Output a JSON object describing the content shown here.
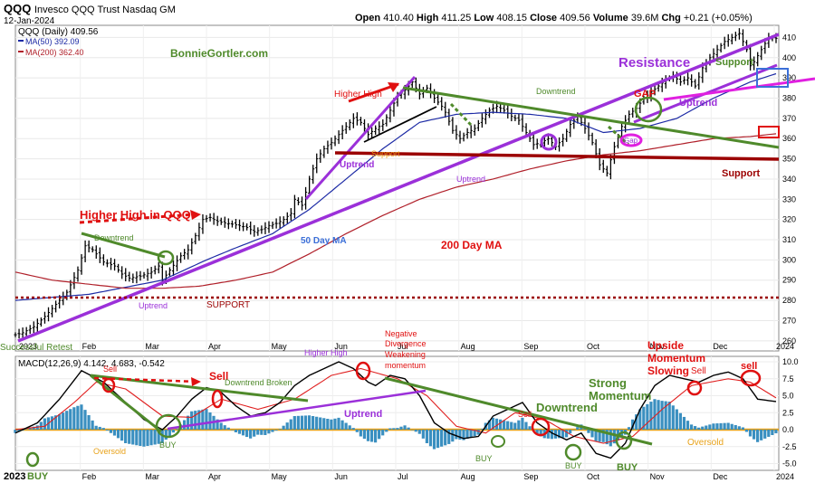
{
  "header": {
    "symbol": "QQQ",
    "name": "Invesco QQQ Trust Nasdaq GM",
    "date": "12-Jan-2024",
    "open_label": "Open",
    "open": "410.40",
    "high_label": "High",
    "high": "411.25",
    "low_label": "Low",
    "low": "408.15",
    "close_label": "Close",
    "close": "409.56",
    "volume_label": "Volume",
    "volume": "39.6M",
    "chg_label": "Chg",
    "chg": "+0.21 (+0.05%)"
  },
  "legend": {
    "price": "QQQ (Daily) 409.56",
    "ma50": "MA(50) 392.09",
    "ma200": "MA(200) 362.40",
    "macd": "MACD(12,26,9) 4.142, 4.683, -0.542"
  },
  "colors": {
    "price": "#000000",
    "ma50": "#1c2aa5",
    "ma200": "#b0202a",
    "purple": "#9b30d9",
    "green": "#4f8a2b",
    "red": "#e01010",
    "darkred": "#9b0000",
    "magenta": "#e020e0",
    "orange": "#e8a21a",
    "blue": "#3b6fd8",
    "hist": "#3a8fc0"
  },
  "chart_data": [
    {
      "type": "line",
      "title": "QQQ (Daily) 409.56",
      "ylim": [
        255,
        416
      ],
      "yticks": [
        260,
        270,
        280,
        290,
        300,
        310,
        320,
        330,
        340,
        350,
        360,
        370,
        380,
        390,
        400,
        410
      ],
      "xticks": [
        "2023",
        "Feb",
        "Mar",
        "Apr",
        "May",
        "Jun",
        "Jul",
        "Aug",
        "Sep",
        "Oct",
        "Nov",
        "Dec",
        "2024"
      ],
      "anchors": {
        "price": [
          [
            0,
            263
          ],
          [
            2,
            264
          ],
          [
            5,
            267
          ],
          [
            8,
            272
          ],
          [
            11,
            278
          ],
          [
            14,
            284
          ],
          [
            17,
            295
          ],
          [
            19,
            307
          ],
          [
            21,
            305
          ],
          [
            24,
            299
          ],
          [
            27,
            297
          ],
          [
            29,
            293
          ],
          [
            31,
            291
          ],
          [
            34,
            292
          ],
          [
            37,
            294
          ],
          [
            39,
            297
          ],
          [
            40,
            290
          ],
          [
            42,
            295
          ],
          [
            45,
            302
          ],
          [
            47,
            305
          ],
          [
            49,
            312
          ],
          [
            51,
            320
          ],
          [
            53,
            321
          ],
          [
            55,
            319
          ],
          [
            58,
            318
          ],
          [
            61,
            317
          ],
          [
            63,
            316
          ],
          [
            65,
            314
          ],
          [
            67,
            315
          ],
          [
            69,
            317
          ],
          [
            71,
            318
          ],
          [
            73,
            320
          ],
          [
            75,
            323
          ],
          [
            76,
            330
          ],
          [
            78,
            327
          ],
          [
            80,
            340
          ],
          [
            82,
            350
          ],
          [
            84,
            355
          ],
          [
            86,
            358
          ],
          [
            88,
            362
          ],
          [
            90,
            366
          ],
          [
            92,
            370
          ],
          [
            94,
            368
          ],
          [
            96,
            362
          ],
          [
            98,
            365
          ],
          [
            100,
            367
          ],
          [
            102,
            374
          ],
          [
            104,
            381
          ],
          [
            106,
            384
          ],
          [
            108,
            388
          ],
          [
            110,
            382
          ],
          [
            112,
            385
          ],
          [
            114,
            380
          ],
          [
            116,
            376
          ],
          [
            117,
            373
          ],
          [
            119,
            364
          ],
          [
            121,
            360
          ],
          [
            123,
            363
          ],
          [
            125,
            365
          ],
          [
            127,
            370
          ],
          [
            129,
            374
          ],
          [
            131,
            376
          ],
          [
            133,
            374
          ],
          [
            135,
            371
          ],
          [
            137,
            369
          ],
          [
            139,
            363
          ],
          [
            141,
            357
          ],
          [
            143,
            358
          ],
          [
            145,
            360
          ],
          [
            147,
            356
          ],
          [
            149,
            360
          ],
          [
            151,
            367
          ],
          [
            153,
            371
          ],
          [
            155,
            365
          ],
          [
            157,
            358
          ],
          [
            159,
            347
          ],
          [
            161,
            343
          ],
          [
            163,
            356
          ],
          [
            165,
            366
          ],
          [
            167,
            372
          ],
          [
            169,
            375
          ],
          [
            171,
            380
          ],
          [
            173,
            383
          ],
          [
            175,
            386
          ],
          [
            177,
            389
          ],
          [
            179,
            391
          ],
          [
            181,
            388
          ],
          [
            183,
            390
          ],
          [
            185,
            386
          ],
          [
            187,
            395
          ],
          [
            189,
            400
          ],
          [
            191,
            404
          ],
          [
            193,
            408
          ],
          [
            195,
            410
          ],
          [
            197,
            412
          ],
          [
            199,
            404
          ],
          [
            200,
            396
          ],
          [
            201,
            398
          ],
          [
            203,
            404
          ],
          [
            205,
            410
          ],
          [
            207,
            409.56
          ]
        ],
        "ma50": [
          [
            0,
            280
          ],
          [
            20,
            283
          ],
          [
            40,
            290
          ],
          [
            52,
            300
          ],
          [
            60,
            306
          ],
          [
            70,
            313
          ],
          [
            80,
            325
          ],
          [
            90,
            340
          ],
          [
            100,
            355
          ],
          [
            110,
            368
          ],
          [
            120,
            372
          ],
          [
            130,
            373
          ],
          [
            140,
            372
          ],
          [
            150,
            370
          ],
          [
            160,
            363
          ],
          [
            170,
            365
          ],
          [
            180,
            370
          ],
          [
            190,
            380
          ],
          [
            200,
            388
          ],
          [
            207,
            392.09
          ]
        ],
        "ma200": [
          [
            0,
            294
          ],
          [
            10,
            290
          ],
          [
            20,
            288
          ],
          [
            30,
            286
          ],
          [
            40,
            286
          ],
          [
            50,
            287
          ],
          [
            60,
            290
          ],
          [
            70,
            294
          ],
          [
            80,
            303
          ],
          [
            90,
            313
          ],
          [
            100,
            322
          ],
          [
            110,
            330
          ],
          [
            120,
            336
          ],
          [
            130,
            340
          ],
          [
            140,
            345
          ],
          [
            150,
            349
          ],
          [
            160,
            352
          ],
          [
            170,
            354
          ],
          [
            180,
            357
          ],
          [
            190,
            360
          ],
          [
            200,
            361
          ],
          [
            207,
            362.4
          ]
        ]
      },
      "annotations": [
        "BonnieGortler.com",
        "Higher High",
        "Higher High in QQQ",
        "Downtrend",
        "Uptrend",
        "Support",
        "SUPPORT",
        "50 Day MA",
        "200 Day MA",
        "Resistance",
        "GAP",
        "Gap",
        "Successful Retest",
        "Higher High"
      ]
    },
    {
      "type": "bar",
      "title": "MACD(12,26,9) 4.142, 4.683, -0.542",
      "ylim": [
        -6,
        10.8
      ],
      "yticks": [
        -5.0,
        -2.5,
        0.0,
        2.5,
        5.0,
        7.5,
        10.0
      ],
      "series": [
        {
          "name": "MACD",
          "anchors": [
            [
              0,
              -0.5
            ],
            [
              6,
              1
            ],
            [
              12,
              4.5
            ],
            [
              18,
              8.7
            ],
            [
              24,
              7
            ],
            [
              30,
              4
            ],
            [
              35,
              1.5
            ],
            [
              40,
              0
            ],
            [
              44,
              2
            ],
            [
              48,
              4.5
            ],
            [
              52,
              6.2
            ],
            [
              56,
              5.5
            ],
            [
              60,
              3.5
            ],
            [
              64,
              2
            ],
            [
              68,
              2.5
            ],
            [
              72,
              4
            ],
            [
              76,
              6.5
            ],
            [
              80,
              8
            ],
            [
              84,
              9
            ],
            [
              88,
              10
            ],
            [
              92,
              9
            ],
            [
              96,
              7
            ],
            [
              98,
              6.5
            ],
            [
              102,
              8
            ],
            [
              106,
              7.5
            ],
            [
              110,
              5
            ],
            [
              114,
              1
            ],
            [
              118,
              -0.5
            ],
            [
              122,
              -1.3
            ],
            [
              126,
              -1
            ],
            [
              130,
              2
            ],
            [
              134,
              3
            ],
            [
              138,
              4
            ],
            [
              142,
              1
            ],
            [
              146,
              -0.5
            ],
            [
              150,
              -1.5
            ],
            [
              154,
              -0.5
            ],
            [
              158,
              -3.5
            ],
            [
              162,
              -4.2
            ],
            [
              166,
              -2
            ],
            [
              170,
              3
            ],
            [
              174,
              6.5
            ],
            [
              178,
              8
            ],
            [
              182,
              7.5
            ],
            [
              186,
              7
            ],
            [
              190,
              8
            ],
            [
              194,
              8.5
            ],
            [
              198,
              7.5
            ],
            [
              202,
              4.5
            ],
            [
              207,
              4.142
            ]
          ]
        },
        {
          "name": "Signal",
          "anchors": [
            [
              0,
              0
            ],
            [
              8,
              0.5
            ],
            [
              16,
              4
            ],
            [
              22,
              7
            ],
            [
              30,
              6
            ],
            [
              40,
              2
            ],
            [
              48,
              1.8
            ],
            [
              56,
              4.5
            ],
            [
              66,
              3
            ],
            [
              76,
              4.5
            ],
            [
              86,
              8
            ],
            [
              94,
              9
            ],
            [
              104,
              7.5
            ],
            [
              112,
              5
            ],
            [
              120,
              0.5
            ],
            [
              128,
              -0.5
            ],
            [
              136,
              2.5
            ],
            [
              144,
              1.5
            ],
            [
              152,
              -1
            ],
            [
              160,
              -2
            ],
            [
              168,
              -1
            ],
            [
              176,
              3
            ],
            [
              184,
              6.5
            ],
            [
              194,
              7.5
            ],
            [
              200,
              7
            ],
            [
              207,
              4.683
            ]
          ]
        }
      ],
      "histogram_final": -0.542,
      "annotations": [
        "Sell",
        "Sell",
        "Downtrend Broken",
        "BUY",
        "Oversold",
        "Uptrend",
        "Negative Divergence Weakening momentum",
        "Strong Momentum",
        "Downtrend",
        "BUY",
        "Upside Momentum Slowing",
        "sell"
      ]
    }
  ],
  "labels": {
    "p_website": "BonnieGortler.com",
    "p_higher_high": "Higher High",
    "p_higher_high_qqq": "Higher High in QQQ",
    "p_downtrend_1": "Downtrend",
    "p_downtrend_2": "Downtrend",
    "p_uptrend_1": "Uptrend",
    "p_uptrend_2": "Uptrend",
    "p_uptrend_3": "Uptrend",
    "p_uptrend_4": "Uptrend",
    "p_support_1": "Support",
    "p_support_2": "Support",
    "p_support_3": "Support",
    "p_support_dashed": "SUPPORT",
    "p_ma50": "50 Day MA",
    "p_ma200": "200 Day MA",
    "p_resistance": "Resistance",
    "p_gap": "GAP",
    "p_gap_small": "Gap",
    "p_retest": "Successful Retest",
    "p_higher_high_2": "Higher High",
    "m_sell_1": "Sell",
    "m_sell_2": "Sell",
    "m_dt_broken": "Downtrend Broken",
    "m_buy_1": "BUY",
    "m_oversold_1": "Oversold",
    "m_oversold_2": "Oversold",
    "m_uptrend": "Uptrend",
    "m_neg_div_1": "Negative",
    "m_neg_div_2": "Divergence",
    "m_neg_div_3": "Weakening",
    "m_neg_div_4": "momentum",
    "m_strong_1": "Strong",
    "m_strong_2": "Momentum",
    "m_downtrend": "Downtrend",
    "m_buy_2": "BUY",
    "m_buy_3": "BUY",
    "m_buy_4": "BUY",
    "m_sell_3": "Sell",
    "m_sell_4": "Sell",
    "m_upside_1": "Upside",
    "m_upside_2": "Momentum",
    "m_upside_3": "Slowing",
    "m_sell_5": "sell",
    "m_buy_year": "2023",
    "m_buy_label": "BUY"
  }
}
